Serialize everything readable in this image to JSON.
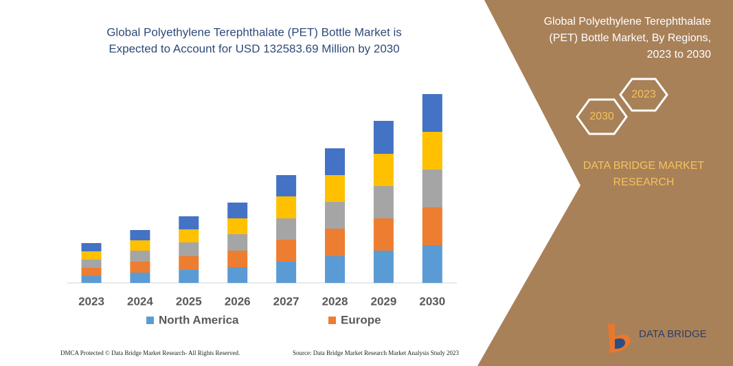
{
  "chart_data": {
    "type": "stacked_bar",
    "title": [
      "Global Polyethylene Terephthalate (PET) Bottle Market is",
      "Expected to Account for USD 132583.69 Million by 2030"
    ],
    "categories": [
      "2023",
      "2024",
      "2025",
      "2026",
      "2027",
      "2028",
      "2029",
      "2030"
    ],
    "series": [
      {
        "name": "North America",
        "color": "#5b9bd5",
        "values": [
          10,
          15,
          19,
          23,
          31,
          39,
          47,
          55
        ]
      },
      {
        "name": "Europe",
        "color": "#ed7d31",
        "values": [
          12,
          16,
          20,
          24,
          32,
          40,
          47,
          55
        ]
      },
      {
        "color": "#a5a5a5",
        "values": [
          12,
          16,
          20,
          24,
          31,
          39,
          47,
          55
        ]
      },
      {
        "color": "#ffc000",
        "values": [
          12,
          15,
          19,
          23,
          32,
          39,
          47,
          55
        ]
      },
      {
        "color": "#4472c4",
        "values": [
          12,
          15,
          19,
          23,
          31,
          39,
          48,
          55
        ]
      }
    ],
    "ylim": [
      0,
      280
    ]
  },
  "panel": {
    "title": [
      "Global Polyethylene Terephthalate",
      "(PET) Bottle Market, By Regions,",
      "2023 to 2030"
    ],
    "badges": [
      "2023",
      "2030"
    ],
    "brand": [
      "DATA BRIDGE MARKET",
      "RESEARCH"
    ],
    "logo": "DATA BRIDGE"
  },
  "footer": {
    "left": "DMCA Protected © Data Bridge Market Research-  All Rights Reserved.",
    "right": "Source: Data Bridge Market Research  Market Analysis Study 2023"
  }
}
